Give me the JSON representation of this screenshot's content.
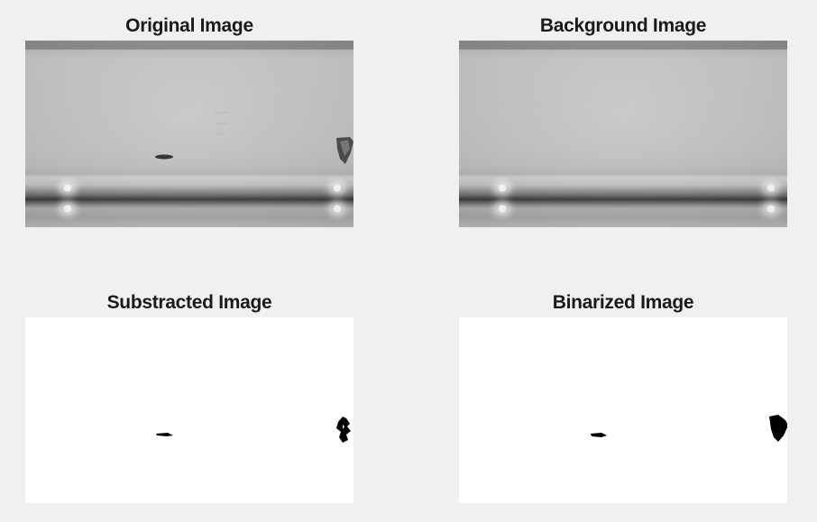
{
  "figure": {
    "panels": [
      {
        "id": "original",
        "title": "Original Image"
      },
      {
        "id": "background",
        "title": "Background Image"
      },
      {
        "id": "subtracted",
        "title": "Substracted Image"
      },
      {
        "id": "binarized",
        "title": "Binarized Image"
      }
    ]
  },
  "colors": {
    "window_background": "#f0f0f0",
    "title_text": "#1a1a1a",
    "binary_foreground": "#000000",
    "binary_background": "#ffffff"
  }
}
